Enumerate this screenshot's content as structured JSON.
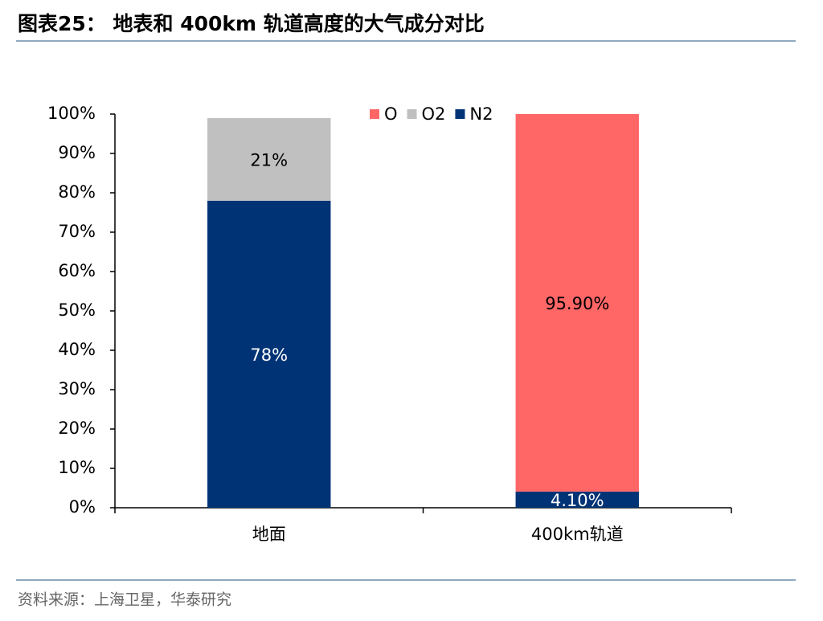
{
  "chart_data": {
    "type": "stacked_bar",
    "title": "图表25： 地表和 400km 轨道高度的大气成分对比",
    "source": "资料来源：上海卫星，华泰研究",
    "categories": [
      "地面",
      "400km轨道"
    ],
    "series": [
      {
        "name": "O",
        "color": "#ff6666",
        "values": [
          null,
          95.9
        ],
        "value_labels": [
          null,
          "95.90%"
        ]
      },
      {
        "name": "O2",
        "color": "#c0c0c0",
        "values": [
          21,
          null
        ],
        "value_labels": [
          "21%",
          null
        ]
      },
      {
        "name": "N2",
        "color": "#003375",
        "values": [
          78,
          4.1
        ],
        "value_labels": [
          "78%",
          "4.10%"
        ]
      }
    ],
    "ylim": [
      0,
      100
    ],
    "yticks": [
      {
        "value": 0,
        "label": "0%"
      },
      {
        "value": 10,
        "label": "10%"
      },
      {
        "value": 20,
        "label": "20%"
      },
      {
        "value": 30,
        "label": "30%"
      },
      {
        "value": 40,
        "label": "40%"
      },
      {
        "value": 50,
        "label": "50%"
      },
      {
        "value": 60,
        "label": "60%"
      },
      {
        "value": 70,
        "label": "70%"
      },
      {
        "value": 80,
        "label": "80%"
      },
      {
        "value": 90,
        "label": "90%"
      },
      {
        "value": 100,
        "label": "100%"
      }
    ],
    "grid": false,
    "legend": "top"
  }
}
